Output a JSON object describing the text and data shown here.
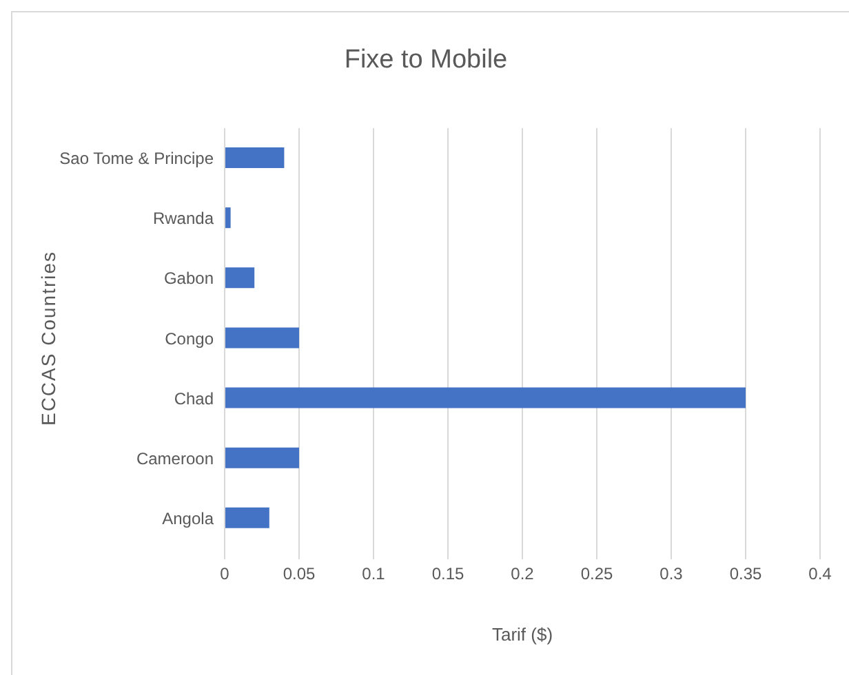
{
  "chart_data": {
    "type": "bar",
    "orientation": "horizontal",
    "title": "Fixe to Mobile",
    "xlabel": "Tarif ($)",
    "ylabel": "ECCAS Countries",
    "categories": [
      "Sao Tome & Principe",
      "Rwanda",
      "Gabon",
      "Congo",
      "Chad",
      "Cameroon",
      "Angola"
    ],
    "values": [
      0.04,
      0.004,
      0.02,
      0.05,
      0.35,
      0.05,
      0.03
    ],
    "color": "#4472c4",
    "xlim": [
      0,
      0.4
    ],
    "xticks": [
      0,
      0.05,
      0.1,
      0.15,
      0.2,
      0.25,
      0.3,
      0.35,
      0.4
    ],
    "grid": "x"
  }
}
